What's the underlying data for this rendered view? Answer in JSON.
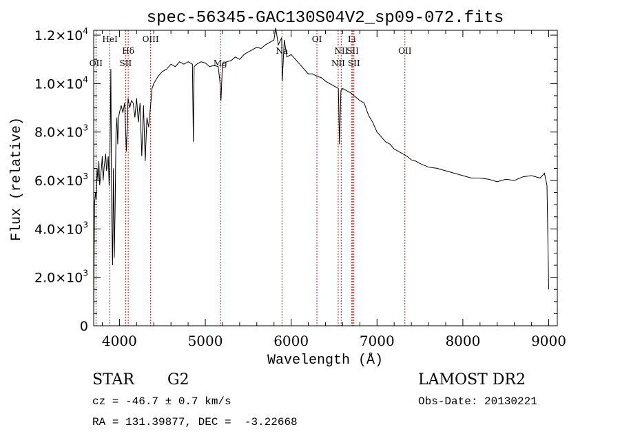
{
  "chart_data": {
    "type": "line",
    "title": "spec-56345-GAC130S04V2_sp09-072.fits",
    "xlabel": "Wavelength (Å)",
    "ylabel": "Flux (relative)",
    "xlim": [
      3700,
      9100
    ],
    "ylim": [
      0,
      12200
    ],
    "grid": false,
    "x_ticks": [
      {
        "v": 4000,
        "label": "4000"
      },
      {
        "v": 5000,
        "label": "5000"
      },
      {
        "v": 6000,
        "label": "6000"
      },
      {
        "v": 7000,
        "label": "7000"
      },
      {
        "v": 8000,
        "label": "8000"
      },
      {
        "v": 9000,
        "label": "9000"
      }
    ],
    "y_ticks": [
      {
        "v": 0,
        "mant": "0",
        "exp": ""
      },
      {
        "v": 2000,
        "mant": "2.0×10",
        "exp": "3"
      },
      {
        "v": 4000,
        "mant": "4.0×10",
        "exp": "3"
      },
      {
        "v": 6000,
        "mant": "6.0×10",
        "exp": "3"
      },
      {
        "v": 8000,
        "mant": "8.0×10",
        "exp": "3"
      },
      {
        "v": 10000,
        "mant": "1.0×10",
        "exp": "4"
      },
      {
        "v": 12000,
        "mant": "1.2×10",
        "exp": "4"
      }
    ],
    "lines": [
      {
        "name": "OII",
        "x": 3727,
        "tier": 2
      },
      {
        "name": "HeI",
        "x": 3889,
        "tier": 0
      },
      {
        "name": "Hδ",
        "x": 4102,
        "tier": 1
      },
      {
        "name": "SII",
        "x": 4072,
        "tier": 2
      },
      {
        "name": "OIII",
        "x": 4363,
        "tier": 0
      },
      {
        "name": "Mg",
        "x": 5175,
        "tier": 2
      },
      {
        "name": "Na",
        "x": 5893,
        "tier": 1
      },
      {
        "name": "OI",
        "x": 6300,
        "tier": 0
      },
      {
        "name": "NII",
        "x": 6548,
        "tier": 2
      },
      {
        "name": "NII",
        "x": 6583,
        "tier": 1
      },
      {
        "name": "Li",
        "x": 6707,
        "tier": 0
      },
      {
        "name": "SII",
        "x": 6717,
        "tier": 1
      },
      {
        "name": "SII",
        "x": 6731,
        "tier": 2
      },
      {
        "name": "OII",
        "x": 7325,
        "tier": 1
      }
    ],
    "series": [
      {
        "x": [
          3700,
          3710,
          3720,
          3730,
          3740,
          3750,
          3760,
          3770,
          3780,
          3790,
          3800,
          3810,
          3820,
          3830,
          3840,
          3850,
          3860,
          3870,
          3880,
          3890,
          3900,
          3910,
          3920,
          3930,
          3940,
          3950,
          3960,
          3970,
          3980,
          3990,
          4000,
          4020,
          4040,
          4060,
          4080,
          4100,
          4120,
          4140,
          4160,
          4180,
          4200,
          4220,
          4240,
          4260,
          4280,
          4300,
          4320,
          4340,
          4360,
          4380,
          4400,
          4450,
          4500,
          4550,
          4600,
          4650,
          4700,
          4750,
          4800,
          4850,
          4861,
          4870,
          4900,
          4950,
          5000,
          5050,
          5100,
          5150,
          5170,
          5183,
          5200,
          5250,
          5300,
          5350,
          5400,
          5450,
          5500,
          5550,
          5600,
          5650,
          5700,
          5750,
          5800,
          5820,
          5850,
          5890,
          5896,
          5920,
          5950,
          6000,
          6050,
          6100,
          6150,
          6200,
          6250,
          6300,
          6350,
          6400,
          6450,
          6500,
          6550,
          6563,
          6580,
          6600,
          6650,
          6700,
          6750,
          6800,
          6850,
          6900,
          6950,
          7000,
          7050,
          7100,
          7150,
          7200,
          7250,
          7300,
          7350,
          7400,
          7450,
          7500,
          7600,
          7700,
          7800,
          7900,
          8000,
          8100,
          8200,
          8300,
          8400,
          8500,
          8600,
          8700,
          8800,
          8900,
          8950,
          8980,
          9000
        ],
        "y": [
          500,
          5000,
          5500,
          5200,
          6500,
          6000,
          6800,
          5800,
          6200,
          6500,
          7000,
          6000,
          6500,
          6800,
          7100,
          6400,
          6700,
          7000,
          5800,
          7200,
          10600,
          4500,
          2500,
          6500,
          2800,
          5000,
          8000,
          8600,
          7500,
          8600,
          8800,
          9100,
          8800,
          9200,
          7200,
          9400,
          9000,
          9300,
          9200,
          8600,
          9400,
          8400,
          9200,
          7000,
          9100,
          6800,
          8600,
          8200,
          9000,
          9800,
          10000,
          10300,
          10500,
          10600,
          10800,
          10700,
          10900,
          10800,
          10900,
          10800,
          7600,
          10700,
          10800,
          10900,
          10850,
          10700,
          10750,
          10700,
          10100,
          9300,
          10800,
          10900,
          10950,
          11100,
          11000,
          11200,
          11300,
          11400,
          11500,
          11450,
          11600,
          11700,
          11800,
          12300,
          11600,
          11900,
          10100,
          11800,
          11100,
          11200,
          11000,
          10800,
          10600,
          10400,
          10400,
          10300,
          10250,
          10100,
          10000,
          9900,
          9800,
          7500,
          9700,
          9800,
          9700,
          9600,
          9450,
          9300,
          9200,
          8700,
          8400,
          8000,
          7800,
          7600,
          7500,
          7300,
          7200,
          7100,
          7000,
          6850,
          6800,
          6700,
          6550,
          6500,
          6400,
          6300,
          6200,
          6100,
          6100,
          6050,
          5950,
          6050,
          6000,
          6150,
          6200,
          6100,
          6300,
          5800,
          1500
        ]
      }
    ]
  },
  "info": {
    "object_class": "STAR",
    "subclass": "G2",
    "cz": "cz = -46.7 ± 0.7 km/s",
    "coords": "RA = 131.39877, DEC =  -3.22668",
    "survey": "LAMOST DR2",
    "obs_date": "Obs-Date: 20130221"
  }
}
